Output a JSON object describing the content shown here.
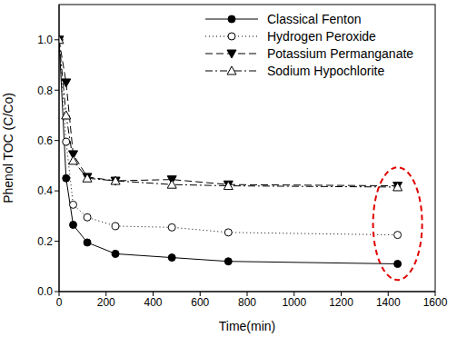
{
  "chart_data": {
    "type": "line",
    "x_label": "Time(min)",
    "y_label": "Phenol TOC (C/Co)",
    "x": [
      0,
      30,
      60,
      120,
      240,
      480,
      720,
      1440
    ],
    "xlim": [
      0,
      1600
    ],
    "xticks": [
      0,
      200,
      400,
      600,
      800,
      1000,
      1200,
      1400,
      1600
    ],
    "ylim": [
      0,
      1.14
    ],
    "yticks": [
      {
        "value": 0,
        "label": "0.0"
      },
      {
        "value": 0.2,
        "label": "0.2"
      },
      {
        "value": 0.4,
        "label": "0.4"
      },
      {
        "value": 0.6,
        "label": "0.6"
      },
      {
        "value": 0.8,
        "label": "0.8"
      },
      {
        "value": 1,
        "label": "1.0"
      }
    ],
    "legend": "upper right",
    "grid": false,
    "series": [
      {
        "name": "Classical Fenton",
        "color": "#000000",
        "marker": "filled_circle",
        "line_style": "solid",
        "values": [
          1.0,
          0.45,
          0.265,
          0.195,
          0.15,
          0.135,
          0.12,
          0.11
        ]
      },
      {
        "name": "Hydrogen Peroxide",
        "color": "#000000",
        "marker": "hollow_circle",
        "line_style": "dotted",
        "values": [
          1.0,
          0.595,
          0.345,
          0.295,
          0.26,
          0.255,
          0.235,
          0.225
        ]
      },
      {
        "name": "Potassium Permanganate",
        "color": "#000000",
        "marker": "filled_triangle_down",
        "line_style": "dashed",
        "values": [
          1.0,
          0.83,
          0.545,
          0.455,
          0.44,
          0.445,
          0.425,
          0.42
        ]
      },
      {
        "name": "Sodium Hypochlorite",
        "color": "#000000",
        "marker": "hollow_triangle_up",
        "line_style": "dashdot",
        "values": [
          1.0,
          0.7,
          0.52,
          0.45,
          0.44,
          0.425,
          0.42,
          0.415
        ]
      }
    ]
  }
}
